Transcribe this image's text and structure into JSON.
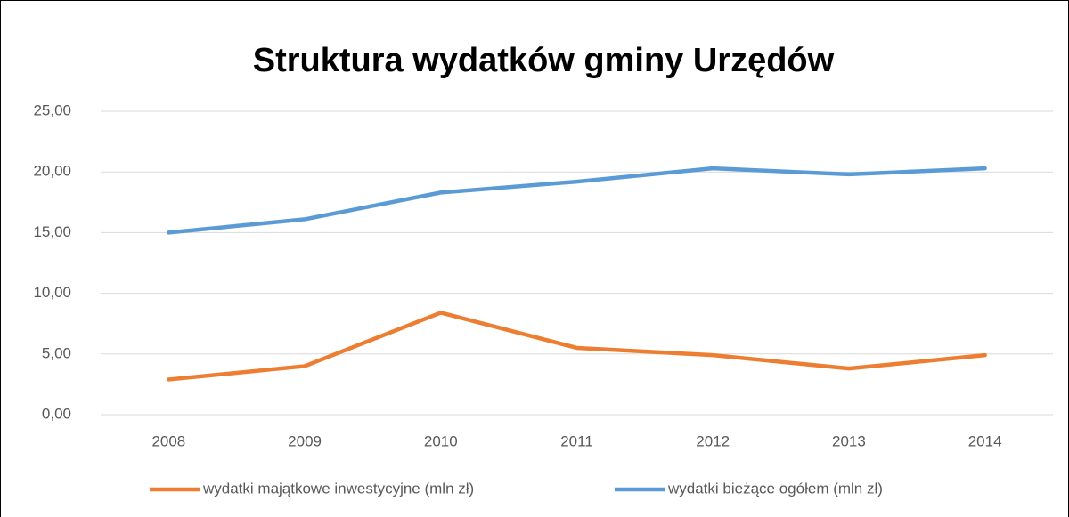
{
  "chart_data": {
    "type": "line",
    "title": "Struktura wydatków gminy Urzędów",
    "categories": [
      "2008",
      "2009",
      "2010",
      "2011",
      "2012",
      "2013",
      "2014"
    ],
    "series": [
      {
        "name": "wydatki majątkowe inwestycyjne (mln zł)",
        "color": "#ED7D31",
        "values": [
          2.9,
          4.0,
          8.4,
          5.5,
          4.9,
          3.8,
          4.9
        ]
      },
      {
        "name": "wydatki bieżące ogółem (mln zł)",
        "color": "#5B9BD5",
        "values": [
          15.0,
          16.1,
          18.3,
          19.2,
          20.3,
          19.8,
          20.3
        ]
      }
    ],
    "ylim": [
      0,
      25
    ],
    "yticks": [
      {
        "value": 0,
        "label": "0,00"
      },
      {
        "value": 5,
        "label": "5,00"
      },
      {
        "value": 10,
        "label": "10,00"
      },
      {
        "value": 15,
        "label": "15,00"
      },
      {
        "value": 20,
        "label": "20,00"
      },
      {
        "value": 25,
        "label": "25,00"
      }
    ],
    "grid": true,
    "legend": "bottom"
  }
}
